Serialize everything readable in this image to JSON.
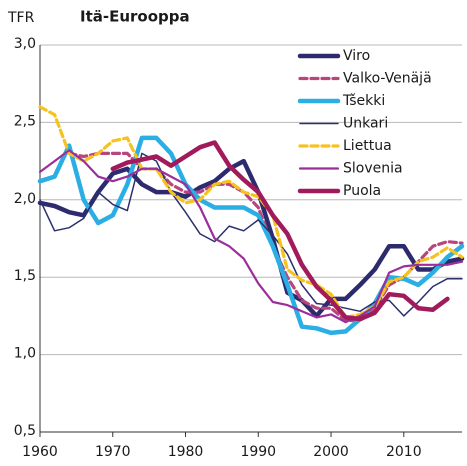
{
  "chart_data": {
    "type": "line",
    "title": "Itä-Eurooppa",
    "y_label": "TFR",
    "x": [
      1960,
      1962,
      1964,
      1966,
      1968,
      1970,
      1972,
      1974,
      1976,
      1978,
      1980,
      1982,
      1984,
      1986,
      1988,
      1990,
      1992,
      1994,
      1996,
      1998,
      2000,
      2002,
      2004,
      2006,
      2008,
      2010,
      2012,
      2014,
      2016,
      2018
    ],
    "xlim": [
      1960,
      2018
    ],
    "xticks": [
      1960,
      1970,
      1980,
      1990,
      2000,
      2010
    ],
    "ylim": [
      0.5,
      3.0
    ],
    "yticks": [
      {
        "value": 0.5,
        "label": "0,5"
      },
      {
        "value": 1.0,
        "label": "1,0"
      },
      {
        "value": 1.5,
        "label": "1,5"
      },
      {
        "value": 2.0,
        "label": "2,0"
      },
      {
        "value": 2.5,
        "label": "2,5"
      },
      {
        "value": 3.0,
        "label": "3,0"
      }
    ],
    "grid": true,
    "legend": "top-right",
    "series": [
      {
        "name": "Viro",
        "color": "#2d2a6e",
        "line_style": "thick",
        "values": [
          1.98,
          1.96,
          1.92,
          1.9,
          2.05,
          2.17,
          2.2,
          2.1,
          2.05,
          2.05,
          2.02,
          2.08,
          2.12,
          2.2,
          2.25,
          2.05,
          1.75,
          1.4,
          1.35,
          1.25,
          1.36,
          1.36,
          1.45,
          1.55,
          1.7,
          1.7,
          1.55,
          1.55,
          1.6,
          1.62
        ]
      },
      {
        "name": "Valko-Venäjä",
        "color": "#b8467c",
        "line_style": "dashed",
        "values": [
          null,
          null,
          2.3,
          2.28,
          2.3,
          2.3,
          2.3,
          2.2,
          2.2,
          2.1,
          2.05,
          2.05,
          2.1,
          2.1,
          2.05,
          1.95,
          1.7,
          1.5,
          1.35,
          1.3,
          1.3,
          1.22,
          1.22,
          1.3,
          1.45,
          1.5,
          1.6,
          1.7,
          1.73,
          1.72
        ]
      },
      {
        "name": "Tšekki",
        "color": "#2aaee4",
        "line_style": "thick",
        "values": [
          2.12,
          2.15,
          2.35,
          2.0,
          1.85,
          1.9,
          2.1,
          2.4,
          2.4,
          2.3,
          2.1,
          2.0,
          1.95,
          1.95,
          1.95,
          1.9,
          1.7,
          1.45,
          1.18,
          1.17,
          1.14,
          1.15,
          1.23,
          1.33,
          1.5,
          1.49,
          1.45,
          1.53,
          1.63,
          1.7
        ]
      },
      {
        "name": "Unkari",
        "color": "#2b2f6e",
        "line_style": "thin",
        "values": [
          2.0,
          1.8,
          1.82,
          1.88,
          2.05,
          1.97,
          1.93,
          2.3,
          2.25,
          2.05,
          1.92,
          1.78,
          1.73,
          1.83,
          1.8,
          1.87,
          1.77,
          1.65,
          1.45,
          1.33,
          1.32,
          1.3,
          1.28,
          1.34,
          1.35,
          1.25,
          1.34,
          1.44,
          1.49,
          1.49
        ]
      },
      {
        "name": "Liettua",
        "color": "#f6c21e",
        "line_style": "dashed",
        "values": [
          2.6,
          2.55,
          2.3,
          2.25,
          2.3,
          2.38,
          2.4,
          2.2,
          2.2,
          2.05,
          1.98,
          2.0,
          2.1,
          2.12,
          2.05,
          2.02,
          1.9,
          1.55,
          1.48,
          1.45,
          1.39,
          1.24,
          1.26,
          1.31,
          1.47,
          1.5,
          1.6,
          1.63,
          1.69,
          1.63
        ]
      },
      {
        "name": "Slovenia",
        "color": "#9a2f9c",
        "line_style": "medium",
        "values": [
          2.18,
          2.25,
          2.32,
          2.25,
          2.15,
          2.12,
          2.15,
          2.2,
          2.2,
          2.15,
          2.1,
          1.95,
          1.75,
          1.7,
          1.62,
          1.46,
          1.34,
          1.32,
          1.28,
          1.24,
          1.26,
          1.21,
          1.25,
          1.31,
          1.53,
          1.57,
          1.58,
          1.58,
          1.58,
          1.6
        ]
      },
      {
        "name": "Puola",
        "color": "#a11a5b",
        "line_style": "thick",
        "values": [
          null,
          null,
          null,
          null,
          null,
          2.2,
          2.24,
          2.26,
          2.28,
          2.22,
          2.28,
          2.34,
          2.37,
          2.22,
          2.13,
          2.05,
          1.9,
          1.78,
          1.58,
          1.44,
          1.35,
          1.24,
          1.23,
          1.27,
          1.39,
          1.38,
          1.3,
          1.29,
          1.36,
          null
        ]
      }
    ]
  }
}
